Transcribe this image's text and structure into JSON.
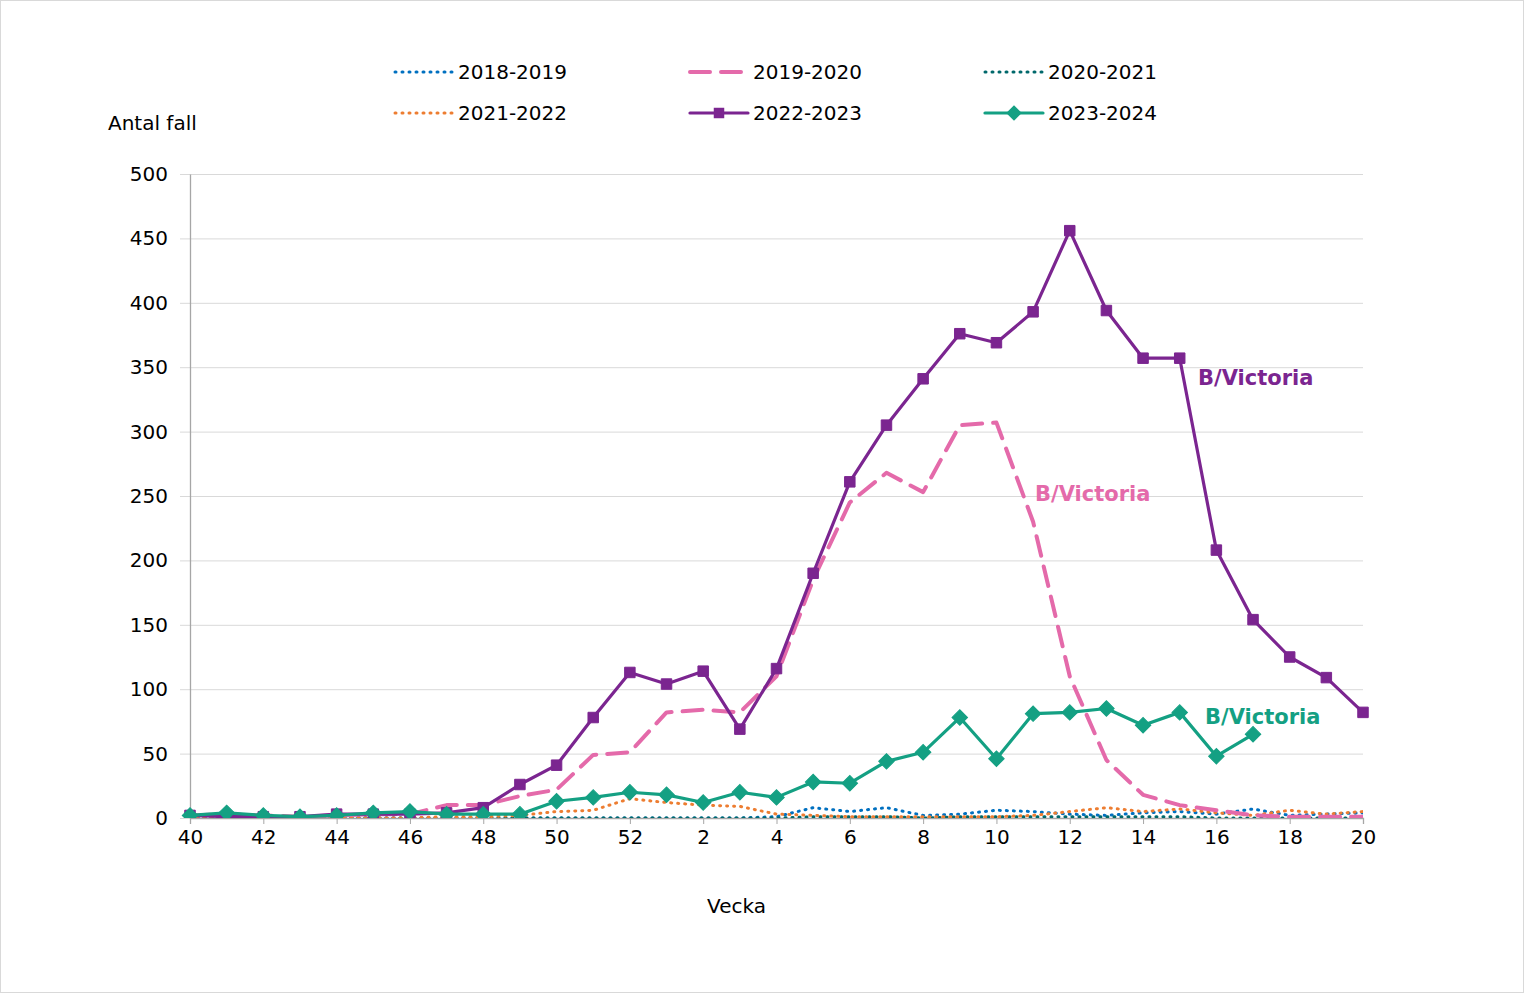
{
  "chart_data": {
    "type": "line",
    "x_label": "Vecka",
    "y_label": "Antal fall",
    "categories": [
      40,
      null,
      42,
      null,
      44,
      null,
      46,
      null,
      48,
      null,
      50,
      null,
      52,
      null,
      2,
      null,
      4,
      null,
      6,
      null,
      8,
      null,
      10,
      null,
      12,
      null,
      14,
      null,
      16,
      null,
      18,
      null,
      20
    ],
    "ylim": [
      0,
      500
    ],
    "yticks": [
      0,
      50,
      100,
      150,
      200,
      250,
      300,
      350,
      400,
      450,
      500
    ],
    "grid": true,
    "legend": "top",
    "series": [
      {
        "name": "2018-2019",
        "color": "#0070C0",
        "line_style": "dotted",
        "marker": "none",
        "values": [
          1,
          1,
          0,
          0,
          1,
          0,
          0,
          0,
          0,
          0,
          0,
          0,
          0,
          0,
          0,
          0,
          1,
          8,
          5,
          8,
          2,
          3,
          6,
          5,
          3,
          2,
          4,
          5,
          3,
          7,
          2,
          3,
          4
        ]
      },
      {
        "name": "2019-2020",
        "color": "#E46AAA",
        "line_style": "dashed",
        "marker": "none",
        "annotation": "B/Victoria",
        "values": [
          2,
          3,
          2,
          1,
          2,
          3,
          3,
          10,
          10,
          17,
          22,
          49,
          51,
          82,
          84,
          82,
          110,
          185,
          245,
          268,
          253,
          305,
          307,
          230,
          110,
          45,
          18,
          10,
          6,
          2,
          1,
          1,
          1
        ]
      },
      {
        "name": "2020-2021",
        "color": "#00686B",
        "line_style": "dotted",
        "marker": "none",
        "values": [
          0,
          0,
          0,
          0,
          0,
          0,
          0,
          0,
          0,
          0,
          0,
          0,
          0,
          0,
          0,
          0,
          0,
          1,
          1,
          1,
          0,
          1,
          1,
          1,
          1,
          1,
          1,
          1,
          0,
          0,
          0,
          0,
          0
        ]
      },
      {
        "name": "2021-2022",
        "color": "#ED7D31",
        "line_style": "dotted",
        "marker": "none",
        "values": [
          0,
          0,
          0,
          0,
          0,
          0,
          0,
          1,
          1,
          2,
          5,
          6,
          15,
          12,
          10,
          9,
          3,
          2,
          1,
          1,
          1,
          1,
          1,
          2,
          5,
          8,
          5,
          7,
          4,
          2,
          6,
          3,
          5
        ]
      },
      {
        "name": "2022-2023",
        "color": "#7B2590",
        "line_style": "solid",
        "marker": "square",
        "annotation": "B/Victoria",
        "values": [
          2,
          1,
          1,
          1,
          3,
          3,
          3,
          4,
          8,
          26,
          41,
          78,
          113,
          104,
          114,
          69,
          116,
          190,
          261,
          305,
          341,
          376,
          369,
          393,
          456,
          394,
          357,
          357,
          208,
          154,
          125,
          109,
          82
        ]
      },
      {
        "name": "2023-2024",
        "color": "#14A083",
        "line_style": "solid",
        "marker": "diamond",
        "annotation": "B/Victoria",
        "values": [
          2,
          4,
          2,
          1,
          2,
          4,
          5,
          3,
          3,
          3,
          13,
          16,
          20,
          18,
          12,
          20,
          16,
          28,
          27,
          44,
          51,
          78,
          46,
          81,
          82,
          85,
          72,
          82,
          48,
          65,
          null,
          null,
          null
        ]
      }
    ]
  }
}
